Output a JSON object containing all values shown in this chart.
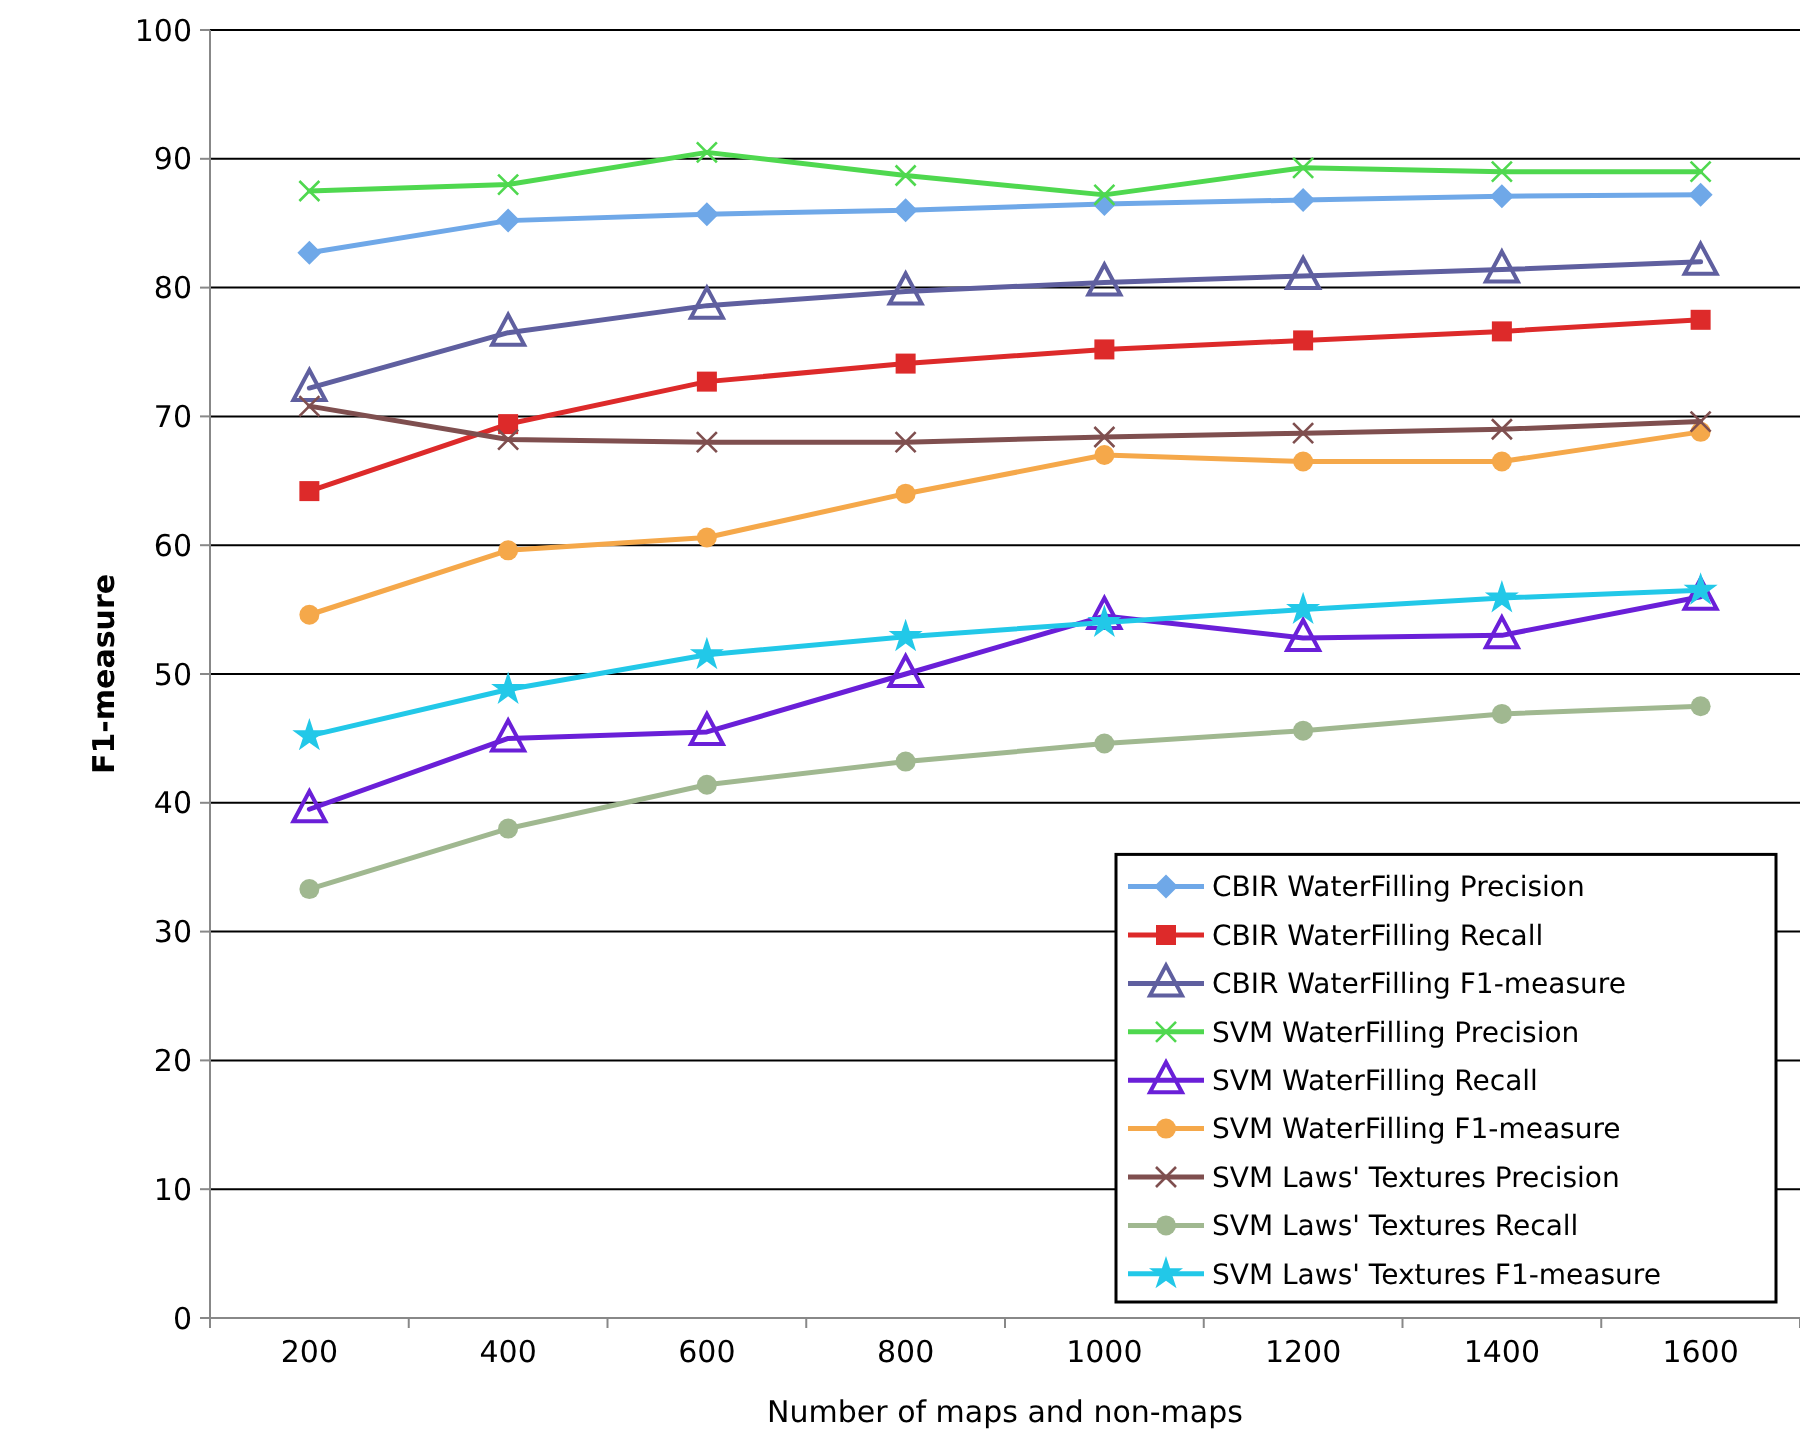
{
  "chart_data": {
    "type": "line",
    "xlabel": "Number of maps and non-maps",
    "ylabel": "F1-measure",
    "categories": [
      "200",
      "400",
      "600",
      "800",
      "1000",
      "1200",
      "1400",
      "1600"
    ],
    "ylim": [
      0,
      100
    ],
    "yticks": [
      0,
      10,
      20,
      30,
      40,
      50,
      60,
      70,
      80,
      90,
      100
    ],
    "grid": "y",
    "legend": "bottom right",
    "series": [
      {
        "name": "CBIR WaterFilling Precision",
        "color": "#6fa8e8",
        "marker": "diamond",
        "values": [
          82.7,
          85.2,
          85.7,
          86.0,
          86.5,
          86.8,
          87.1,
          87.2
        ]
      },
      {
        "name": "CBIR WaterFilling Recall",
        "color": "#dd2a2a",
        "marker": "square",
        "values": [
          64.2,
          69.4,
          72.7,
          74.1,
          75.2,
          75.9,
          76.6,
          77.5
        ]
      },
      {
        "name": "CBIR WaterFilling F1-measure",
        "color": "#5f5f9f",
        "marker": "triangle",
        "values": [
          72.2,
          76.5,
          78.6,
          79.7,
          80.4,
          80.9,
          81.4,
          82.0
        ]
      },
      {
        "name": "SVM WaterFilling Precision",
        "color": "#4fd84f",
        "marker": "cross",
        "values": [
          87.5,
          88.0,
          90.5,
          88.7,
          87.2,
          89.3,
          89.0,
          89.0
        ]
      },
      {
        "name": "SVM WaterFilling Recall",
        "color": "#6a1fd8",
        "marker": "triangle",
        "values": [
          39.5,
          45.0,
          45.5,
          50.0,
          54.5,
          52.8,
          53.0,
          56.0
        ]
      },
      {
        "name": "SVM WaterFilling F1-measure",
        "color": "#f5a84a",
        "marker": "circle",
        "values": [
          54.6,
          59.6,
          60.6,
          64.0,
          67.0,
          66.5,
          66.5,
          68.8
        ]
      },
      {
        "name": "SVM Laws' Textures Precision",
        "color": "#7f4f4f",
        "marker": "cross",
        "values": [
          70.8,
          68.2,
          68.0,
          68.0,
          68.4,
          68.7,
          69.0,
          69.6
        ]
      },
      {
        "name": "SVM Laws' Textures Recall",
        "color": "#a0b890",
        "marker": "circle",
        "values": [
          33.3,
          38.0,
          41.4,
          43.2,
          44.6,
          45.6,
          46.9,
          47.5
        ]
      },
      {
        "name": "SVM Laws' Textures F1-measure",
        "color": "#22c8e8",
        "marker": "star",
        "values": [
          45.2,
          48.8,
          51.5,
          52.9,
          54.0,
          55.0,
          55.9,
          56.5
        ]
      }
    ]
  }
}
